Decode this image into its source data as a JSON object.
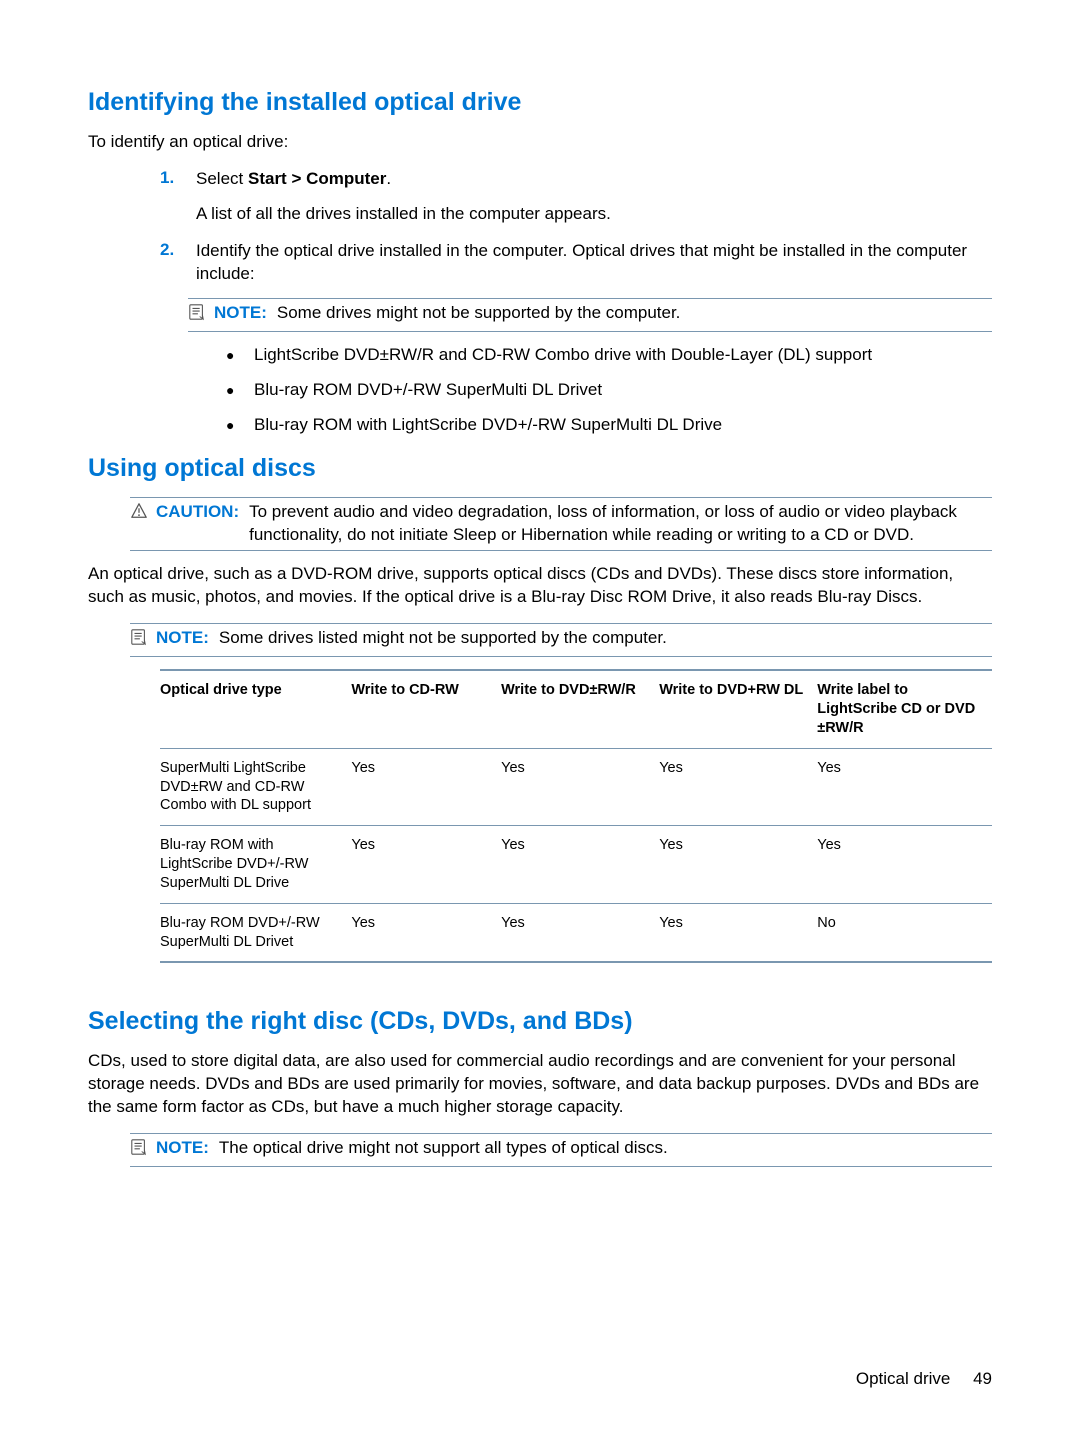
{
  "section1": {
    "title": "Identifying the installed optical drive",
    "intro": "To identify an optical drive:",
    "steps": [
      {
        "num": "1.",
        "lead": "Select ",
        "bold": "Start > Computer",
        "tail": ".",
        "after": "A list of all the drives installed in the computer appears."
      },
      {
        "num": "2.",
        "text": "Identify the optical drive installed in the computer. Optical drives that might be installed in the computer include:"
      }
    ],
    "note": {
      "label": "NOTE:",
      "text": "Some drives might not be supported by the computer."
    },
    "bullets": [
      "LightScribe DVD±RW/R and CD-RW Combo drive with Double-Layer (DL) support",
      "Blu-ray ROM DVD+/-RW SuperMulti DL Drivet",
      "Blu-ray ROM with LightScribe DVD+/-RW SuperMulti DL Drive"
    ]
  },
  "section2": {
    "title": "Using optical discs",
    "caution": {
      "label": "CAUTION:",
      "text": "To prevent audio and video degradation, loss of information, or loss of audio or video playback functionality, do not initiate Sleep or Hibernation while reading or writing to a CD or DVD."
    },
    "para": "An optical drive, such as a DVD-ROM drive, supports optical discs (CDs and DVDs). These discs store information, such as music, photos, and movies. If the optical drive is a Blu-ray Disc ROM Drive, it also reads Blu-ray Discs.",
    "note": {
      "label": "NOTE:",
      "text": "Some drives listed might not be supported by the computer."
    },
    "table": {
      "columns": [
        "Optical drive type",
        "Write to CD-RW",
        "Write to DVD±RW/R",
        "Write to DVD+RW DL",
        "Write label to LightScribe CD or DVD ±RW/R"
      ],
      "col_widths": [
        "23%",
        "18%",
        "19%",
        "19%",
        "21%"
      ],
      "rows": [
        [
          "SuperMulti LightScribe DVD±RW and CD-RW Combo with DL support",
          "Yes",
          "Yes",
          "Yes",
          "Yes"
        ],
        [
          "Blu-ray ROM with LightScribe DVD+/-RW SuperMulti DL Drive",
          "Yes",
          "Yes",
          "Yes",
          "Yes"
        ],
        [
          "Blu-ray ROM DVD+/-RW SuperMulti DL Drivet",
          "Yes",
          "Yes",
          "Yes",
          "No"
        ]
      ]
    }
  },
  "section3": {
    "title": "Selecting the right disc (CDs, DVDs, and BDs)",
    "para": "CDs, used to store digital data, are also used for commercial audio recordings and are convenient for your personal storage needs. DVDs and BDs are used primarily for movies, software, and data backup purposes. DVDs and BDs are the same form factor as CDs, but have a much higher storage capacity.",
    "note": {
      "label": "NOTE:",
      "text": "The optical drive might not support all types of optical discs."
    }
  },
  "footer": {
    "section": "Optical drive",
    "page": "49"
  },
  "colors": {
    "accent": "#0077d4",
    "rule": "#7a97b0",
    "text": "#000000",
    "background": "#ffffff"
  }
}
